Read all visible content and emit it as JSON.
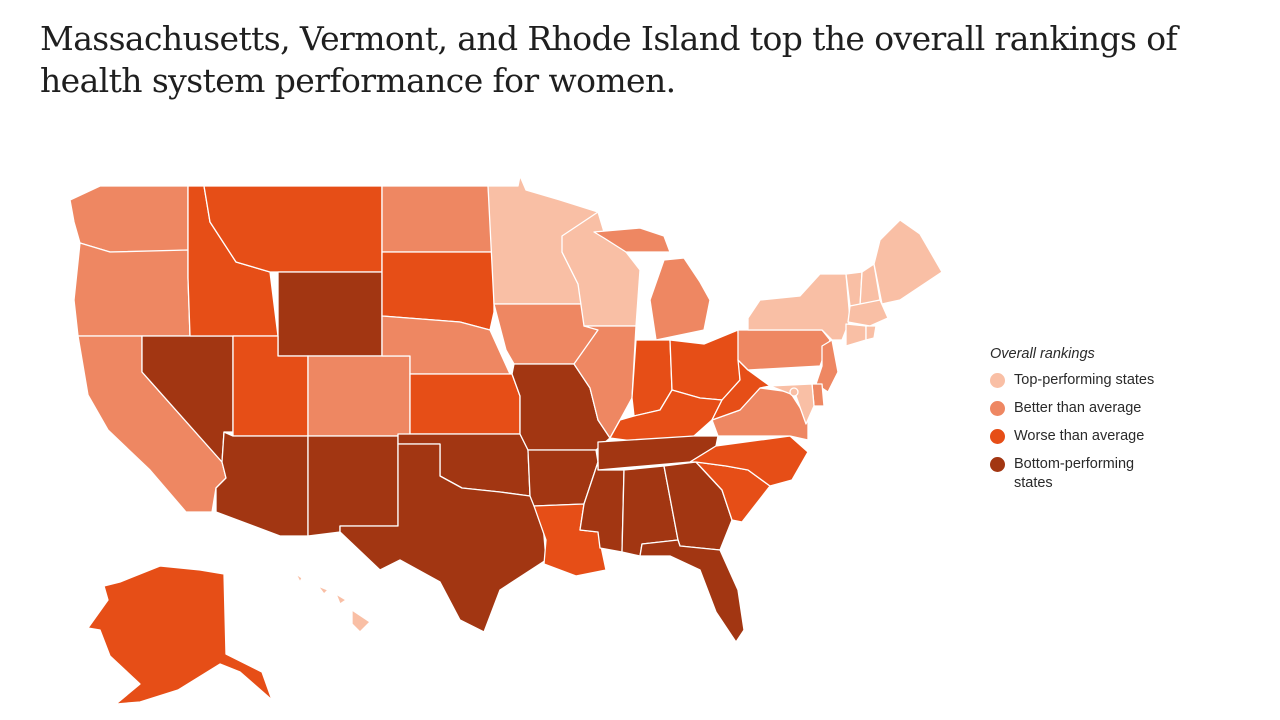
{
  "title": "Massachusetts, Vermont, and Rhode Island top the overall rankings of health system performance for women.",
  "legend": {
    "title": "Overall rankings",
    "items": [
      {
        "key": "top",
        "label": "Top-performing states",
        "color": "#f9bfa5"
      },
      {
        "key": "better",
        "label": "Better than average",
        "color": "#ee8762"
      },
      {
        "key": "worse",
        "label": "Worse than average",
        "color": "#e64e17"
      },
      {
        "key": "bottom",
        "label": "Bottom-performing states",
        "color": "#a23612"
      }
    ]
  },
  "rankings": {
    "WA": "better",
    "OR": "better",
    "CA": "better",
    "NV": "bottom",
    "ID": "worse",
    "MT": "worse",
    "WY": "bottom",
    "UT": "worse",
    "AZ": "bottom",
    "CO": "better",
    "NM": "bottom",
    "ND": "better",
    "SD": "worse",
    "NE": "better",
    "KS": "worse",
    "OK": "bottom",
    "TX": "bottom",
    "MN": "top",
    "IA": "better",
    "MO": "bottom",
    "AR": "bottom",
    "LA": "worse",
    "WI": "top",
    "IL": "better",
    "MI": "better",
    "IN": "worse",
    "OH": "worse",
    "KY": "worse",
    "TN": "bottom",
    "MS": "bottom",
    "AL": "bottom",
    "GA": "bottom",
    "FL": "bottom",
    "SC": "worse",
    "NC": "worse",
    "VA": "better",
    "WV": "worse",
    "PA": "better",
    "NY": "top",
    "VT": "top",
    "NH": "top",
    "ME": "top",
    "MA": "top",
    "RI": "top",
    "CT": "top",
    "NJ": "better",
    "DE": "better",
    "MD": "top",
    "DC": "top",
    "AK": "worse",
    "HI": "top"
  }
}
